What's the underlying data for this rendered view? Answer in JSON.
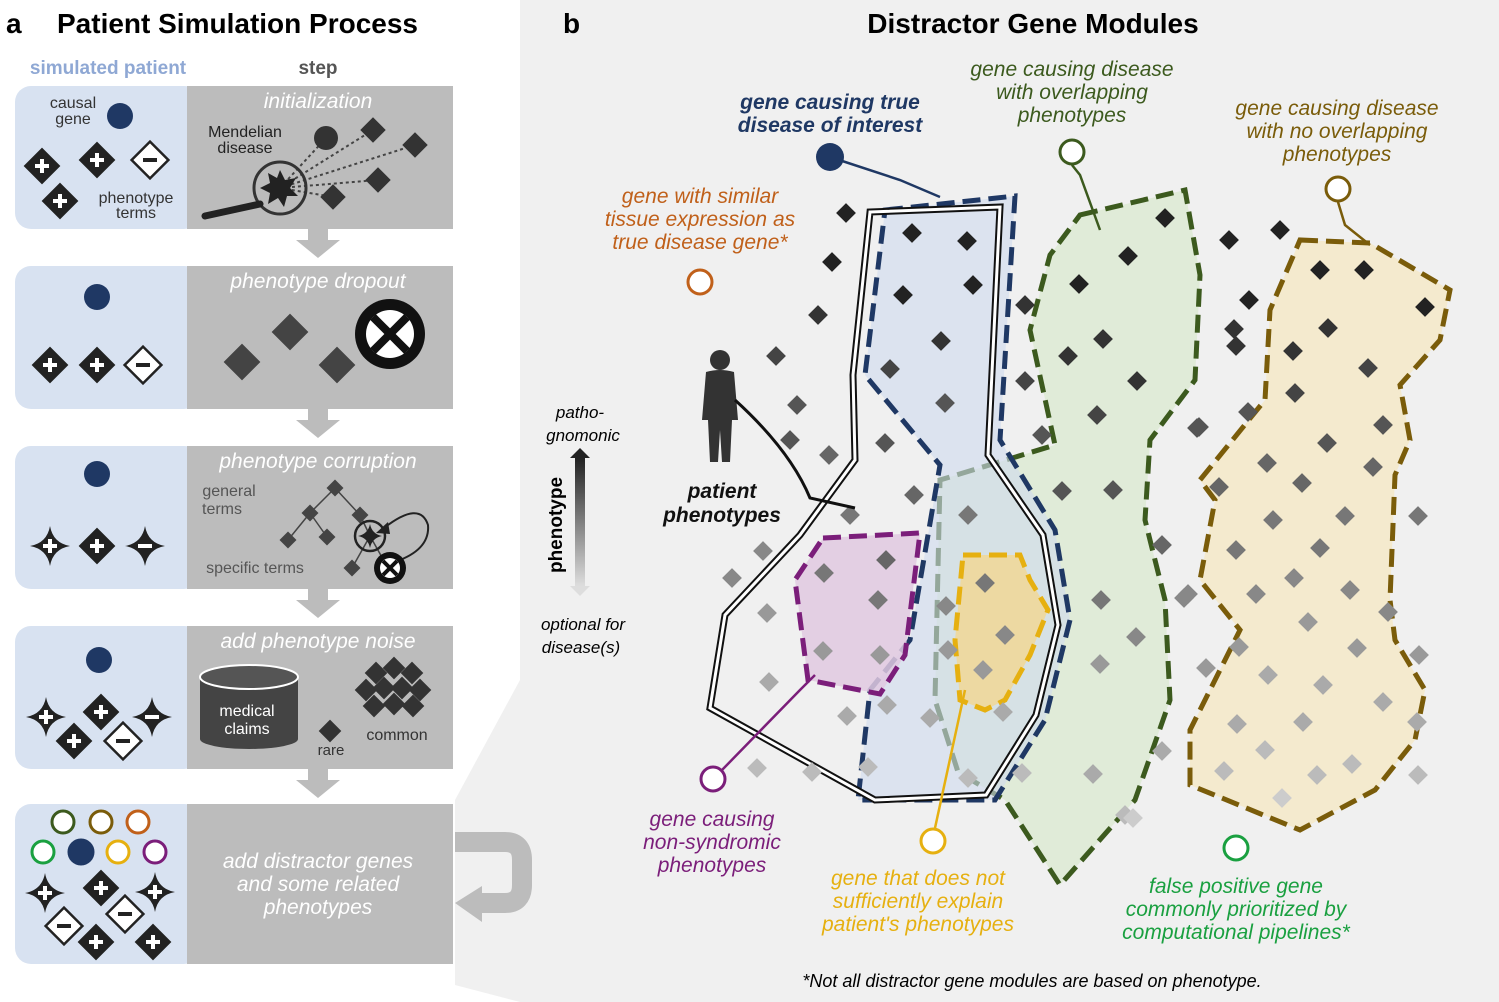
{
  "panel_a": {
    "letter": "a",
    "title": "Patient Simulation Process",
    "col_simulated": "simulated patient",
    "col_step": "step",
    "step1": {
      "title": "initialization",
      "causal_line1": "causal",
      "causal_line2": "gene",
      "mendelian_line1": "Mendelian",
      "mendelian_line2": "disease",
      "phen_line1": "phenotype",
      "phen_line2": "terms"
    },
    "step2": {
      "title": "phenotype dropout"
    },
    "step3": {
      "title": "phenotype corruption",
      "general_line1": "general",
      "general_line2": "terms",
      "specific": "specific terms"
    },
    "step4": {
      "title": "add phenotype noise",
      "claims_line1": "medical",
      "claims_line2": "claims",
      "rare": "rare",
      "common": "common"
    },
    "step5": {
      "title_line1": "add distractor genes",
      "title_line2": "and some related",
      "title_line3": "phenotypes"
    }
  },
  "panel_b": {
    "letter": "b",
    "title": "Distractor Gene Modules",
    "true_gene": {
      "line1": "gene causing true",
      "line2": "disease of interest",
      "color": "#1f3864"
    },
    "overlap": {
      "line1": "gene causing disease",
      "line2": "with overlapping",
      "line3": "phenotypes",
      "color": "#3c5a1e"
    },
    "no_overlap": {
      "line1": "gene causing disease",
      "line2": "with no overlapping",
      "line3": "phenotypes",
      "color": "#7a5c0a"
    },
    "tissue": {
      "line1": "gene with similar",
      "line2": "tissue expression as",
      "line3": "true disease gene*",
      "color": "#c0601a"
    },
    "patient": {
      "line1": "patient",
      "line2": "phenotypes"
    },
    "axis": {
      "top_line1": "patho-",
      "top_line2": "gnomonic",
      "label": "phenotype",
      "bottom_line1": "optional for",
      "bottom_line2": "disease(s)"
    },
    "nonsyndromic": {
      "line1": "gene causing",
      "line2": "non-syndromic",
      "line3": "phenotypes",
      "color": "#7b1e7a"
    },
    "insufficient": {
      "line1": "gene that does not",
      "line2": "sufficiently explain",
      "line3": "patient's phenotypes",
      "color": "#e6b010"
    },
    "false_positive": {
      "line1": "false positive gene",
      "line2": "commonly prioritized by",
      "line3": "computational pipelines*",
      "color": "#1aa040"
    },
    "footnote": "*Not all distractor gene modules are based on phenotype."
  }
}
